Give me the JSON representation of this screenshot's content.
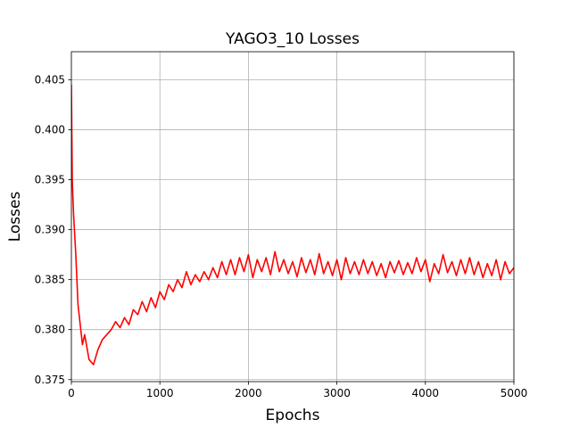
{
  "chart_data": {
    "type": "line",
    "title": "YAGO3_10 Losses",
    "xlabel": "Epochs",
    "ylabel": "Losses",
    "x": [
      0,
      10,
      25,
      50,
      75,
      100,
      125,
      150,
      200,
      250,
      300,
      350,
      400,
      450,
      500,
      550,
      600,
      650,
      700,
      750,
      800,
      850,
      900,
      950,
      1000,
      1050,
      1100,
      1150,
      1200,
      1250,
      1300,
      1350,
      1400,
      1450,
      1500,
      1550,
      1600,
      1650,
      1700,
      1750,
      1800,
      1850,
      1900,
      1950,
      2000,
      2050,
      2100,
      2150,
      2200,
      2250,
      2300,
      2350,
      2400,
      2450,
      2500,
      2550,
      2600,
      2650,
      2700,
      2750,
      2800,
      2850,
      2900,
      2950,
      3000,
      3050,
      3100,
      3150,
      3200,
      3250,
      3300,
      3350,
      3400,
      3450,
      3500,
      3550,
      3600,
      3650,
      3700,
      3750,
      3800,
      3850,
      3900,
      3950,
      4000,
      4050,
      4100,
      4150,
      4200,
      4250,
      4300,
      4350,
      4400,
      4450,
      4500,
      4550,
      4600,
      4650,
      4700,
      4750,
      4800,
      4850,
      4900,
      4950,
      5000
    ],
    "series": [
      {
        "name": "Losses",
        "color": "#ff0000",
        "values": [
          0.4045,
          0.395,
          0.3915,
          0.3875,
          0.3825,
          0.3805,
          0.3785,
          0.3795,
          0.377,
          0.3765,
          0.378,
          0.379,
          0.3795,
          0.38,
          0.3808,
          0.3802,
          0.3812,
          0.3805,
          0.382,
          0.3815,
          0.3828,
          0.3818,
          0.3832,
          0.3822,
          0.3838,
          0.383,
          0.3845,
          0.3838,
          0.385,
          0.3842,
          0.3858,
          0.3845,
          0.3855,
          0.3848,
          0.3858,
          0.385,
          0.3862,
          0.3852,
          0.3868,
          0.3855,
          0.387,
          0.3855,
          0.3872,
          0.3858,
          0.3875,
          0.3852,
          0.387,
          0.3858,
          0.3872,
          0.3855,
          0.3878,
          0.3858,
          0.387,
          0.3856,
          0.3868,
          0.3853,
          0.3872,
          0.3857,
          0.387,
          0.3855,
          0.3876,
          0.3856,
          0.3868,
          0.3854,
          0.387,
          0.385,
          0.3872,
          0.3856,
          0.3868,
          0.3855,
          0.387,
          0.3856,
          0.3868,
          0.3854,
          0.3866,
          0.3852,
          0.3868,
          0.3857,
          0.3869,
          0.3855,
          0.3867,
          0.3856,
          0.3872,
          0.3858,
          0.387,
          0.3848,
          0.3866,
          0.3856,
          0.3875,
          0.3857,
          0.3868,
          0.3854,
          0.387,
          0.3856,
          0.3872,
          0.3855,
          0.3868,
          0.3852,
          0.3866,
          0.3854,
          0.387,
          0.385,
          0.3868,
          0.3856,
          0.3862
        ]
      }
    ],
    "xlim": [
      0,
      5000
    ],
    "ylim": [
      0.3748,
      0.4078
    ],
    "xticks": [
      0,
      1000,
      2000,
      3000,
      4000,
      5000
    ],
    "yticks": [
      0.375,
      {
        "value": 0.38,
        "label": "0.380"
      },
      0.385,
      {
        "value": 0.39,
        "label": "0.390"
      },
      0.395,
      {
        "value": 0.4,
        "label": "0.400"
      },
      0.405
    ],
    "grid": true
  }
}
